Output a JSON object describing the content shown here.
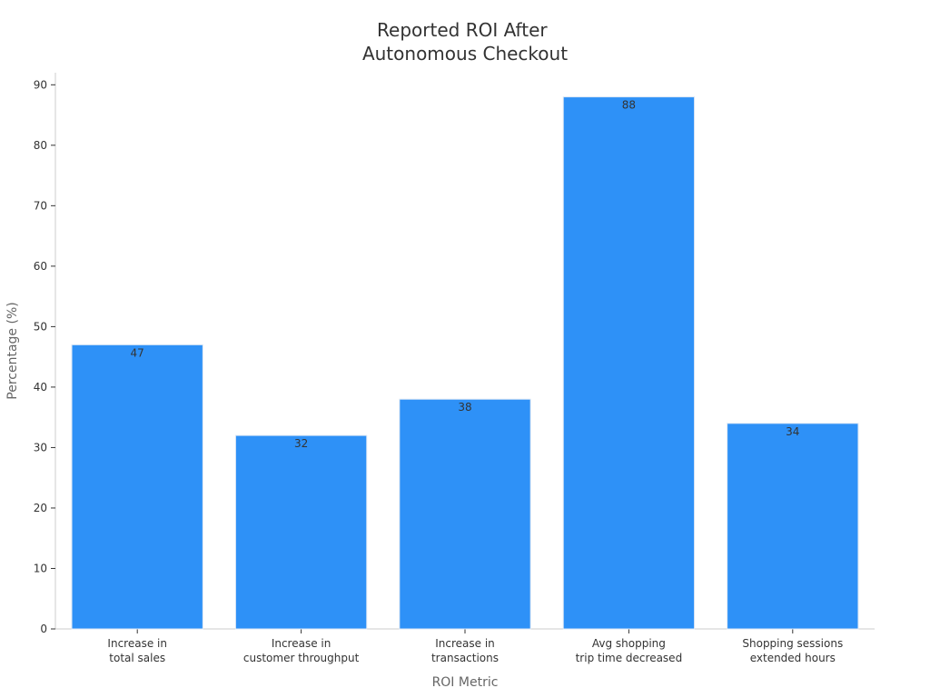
{
  "chart_data": {
    "type": "bar",
    "title_lines": [
      "Reported ROI After",
      "Autonomous Checkout"
    ],
    "xlabel": "ROI Metric",
    "ylabel": "Percentage (%)",
    "categories": [
      [
        "Increase in",
        "total sales"
      ],
      [
        "Increase in",
        "customer throughput"
      ],
      [
        "Increase in",
        "transactions"
      ],
      [
        "Avg shopping",
        "trip time decreased"
      ],
      [
        "Shopping sessions",
        "extended hours"
      ]
    ],
    "values": [
      47,
      32,
      38,
      88,
      34
    ],
    "ylim": [
      0,
      92
    ],
    "yticks": [
      0,
      10,
      20,
      30,
      40,
      50,
      60,
      70,
      80,
      90
    ],
    "grid": false,
    "bar_color": "#2e91f7",
    "data_labels": true
  }
}
